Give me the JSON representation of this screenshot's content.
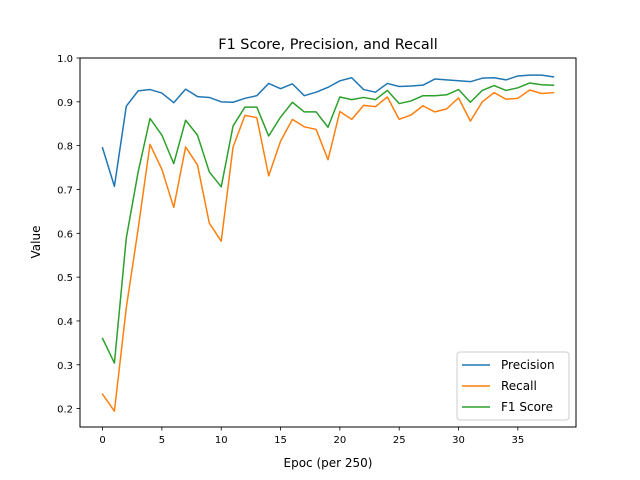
{
  "chart_data": {
    "type": "line",
    "title": "F1 Score, Precision, and Recall",
    "xlabel": "Epoc (per 250)",
    "ylabel": "Value",
    "xlim": [
      -1.9,
      39.9
    ],
    "ylim": [
      0.158,
      1.0
    ],
    "xticks": [
      0,
      5,
      10,
      15,
      20,
      25,
      30,
      35
    ],
    "yticks": [
      0.2,
      0.3,
      0.4,
      0.5,
      0.6,
      0.7,
      0.8,
      0.9,
      1.0
    ],
    "grid": false,
    "legend_position": "lower right",
    "x": [
      0,
      1,
      2,
      3,
      4,
      5,
      6,
      7,
      8,
      9,
      10,
      11,
      12,
      13,
      14,
      15,
      16,
      17,
      18,
      19,
      20,
      21,
      22,
      23,
      24,
      25,
      26,
      27,
      28,
      29,
      30,
      31,
      32,
      33,
      34,
      35,
      36,
      37,
      38
    ],
    "series": [
      {
        "name": "Precision",
        "color": "#1f77b4",
        "values": [
          0.795,
          0.707,
          0.89,
          0.925,
          0.928,
          0.92,
          0.898,
          0.929,
          0.912,
          0.91,
          0.9,
          0.899,
          0.908,
          0.914,
          0.942,
          0.93,
          0.941,
          0.914,
          0.922,
          0.933,
          0.948,
          0.955,
          0.928,
          0.922,
          0.942,
          0.935,
          0.936,
          0.938,
          0.952,
          0.95,
          0.948,
          0.946,
          0.954,
          0.955,
          0.95,
          0.959,
          0.961,
          0.961,
          0.957
        ]
      },
      {
        "name": "Recall",
        "color": "#ff7f0e",
        "values": [
          0.233,
          0.194,
          0.43,
          0.61,
          0.803,
          0.746,
          0.659,
          0.797,
          0.756,
          0.623,
          0.582,
          0.797,
          0.869,
          0.864,
          0.731,
          0.81,
          0.86,
          0.843,
          0.837,
          0.768,
          0.878,
          0.86,
          0.892,
          0.889,
          0.911,
          0.86,
          0.87,
          0.891,
          0.877,
          0.884,
          0.909,
          0.856,
          0.9,
          0.921,
          0.906,
          0.908,
          0.927,
          0.919,
          0.921
        ]
      },
      {
        "name": "F1 Score",
        "color": "#2ca02c",
        "values": [
          0.36,
          0.304,
          0.589,
          0.74,
          0.862,
          0.824,
          0.759,
          0.858,
          0.824,
          0.74,
          0.706,
          0.845,
          0.888,
          0.888,
          0.822,
          0.865,
          0.899,
          0.877,
          0.877,
          0.842,
          0.911,
          0.905,
          0.91,
          0.905,
          0.926,
          0.896,
          0.902,
          0.914,
          0.914,
          0.916,
          0.928,
          0.899,
          0.926,
          0.937,
          0.926,
          0.932,
          0.943,
          0.939,
          0.938
        ]
      }
    ]
  }
}
